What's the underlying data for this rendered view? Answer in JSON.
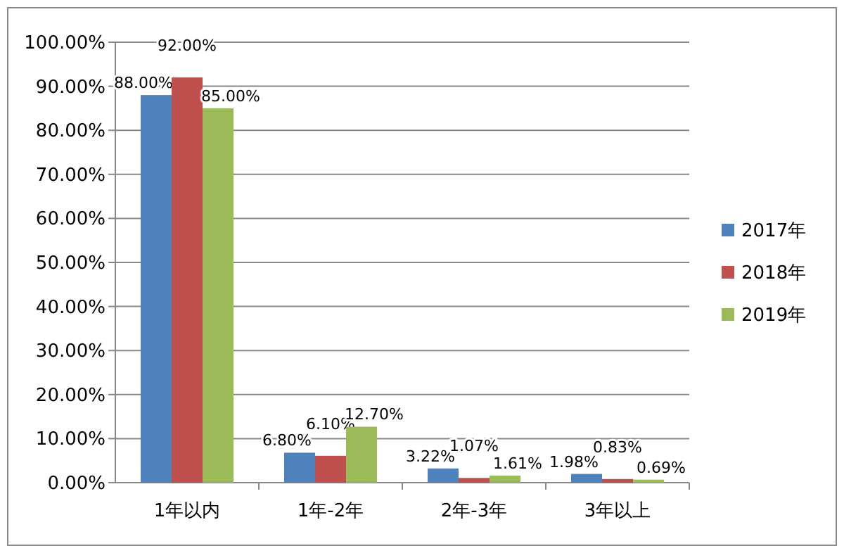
{
  "chart_data": {
    "type": "bar",
    "categories": [
      "1年以内",
      "1年-2年",
      "2年-3年",
      "3年以上"
    ],
    "series": [
      {
        "name": "2017年",
        "color": "#4f81bd",
        "values": [
          88.0,
          6.8,
          3.22,
          1.98
        ],
        "value_labels": [
          "88.00%",
          "6.80%",
          "3.22%",
          "1.98%"
        ]
      },
      {
        "name": "2018年",
        "color": "#c0504d",
        "values": [
          92.0,
          6.1,
          1.07,
          0.83
        ],
        "value_labels": [
          "92.00%",
          "6.10%",
          "1.07%",
          "0.83%"
        ]
      },
      {
        "name": "2019年",
        "color": "#9bbb59",
        "values": [
          85.0,
          12.7,
          1.61,
          0.69
        ],
        "value_labels": [
          "85.00%",
          "12.70%",
          "1.61%",
          "0.69%"
        ]
      }
    ],
    "ylim": [
      0,
      100
    ],
    "yticks": [
      {
        "value": 0,
        "label": "0.00%"
      },
      {
        "value": 10,
        "label": "10.00%"
      },
      {
        "value": 20,
        "label": "20.00%"
      },
      {
        "value": 30,
        "label": "30.00%"
      },
      {
        "value": 40,
        "label": "40.00%"
      },
      {
        "value": 50,
        "label": "50.00%"
      },
      {
        "value": 60,
        "label": "60.00%"
      },
      {
        "value": 70,
        "label": "70.00%"
      },
      {
        "value": 80,
        "label": "80.00%"
      },
      {
        "value": 90,
        "label": "90.00%"
      },
      {
        "value": 100,
        "label": "100.00%"
      }
    ],
    "grid": "y",
    "legend": "right"
  }
}
